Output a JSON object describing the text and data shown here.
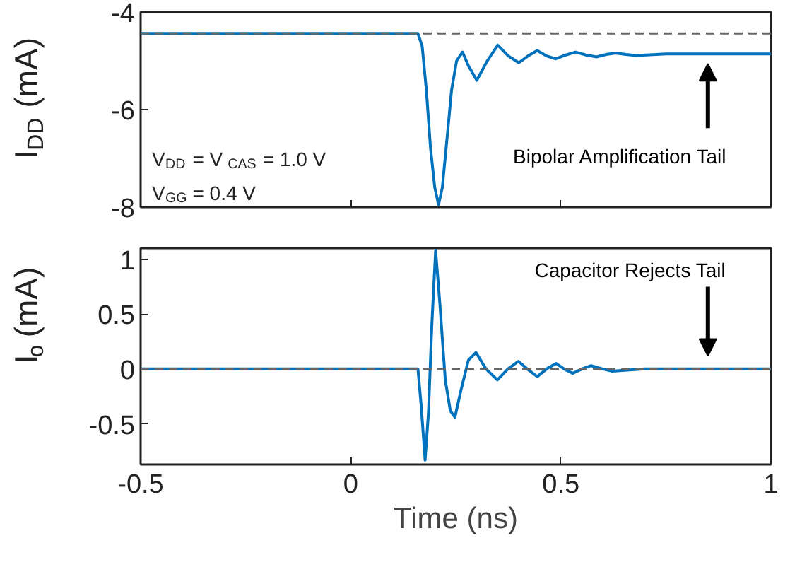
{
  "chart_data": [
    {
      "type": "line",
      "ylabel": "I$_{DD}$ (mA)",
      "xlim": [
        -0.5,
        1
      ],
      "xticks": [
        -0.5,
        0,
        0.5,
        1
      ],
      "ylim": [
        -8,
        -4
      ],
      "yticks": [
        -8,
        -6,
        -4
      ],
      "tick_labels": "y",
      "marker": "none",
      "line_style": "solid",
      "x": [
        -0.5,
        0.16,
        0.17,
        0.18,
        0.19,
        0.2,
        0.209,
        0.218,
        0.228,
        0.24,
        0.252,
        0.266,
        0.28,
        0.3,
        0.325,
        0.35,
        0.375,
        0.4,
        0.422,
        0.444,
        0.466,
        0.488,
        0.512,
        0.535,
        0.56,
        0.585,
        0.608,
        0.63,
        0.655,
        0.68,
        0.75,
        1.0
      ],
      "series": [
        {
          "color": "#0072bd",
          "values": [
            -4.44,
            -4.44,
            -4.7,
            -5.6,
            -6.8,
            -7.6,
            -7.95,
            -7.6,
            -6.7,
            -5.6,
            -5.0,
            -4.82,
            -5.1,
            -5.4,
            -5.0,
            -4.68,
            -4.9,
            -5.04,
            -4.9,
            -4.79,
            -4.9,
            -4.96,
            -4.88,
            -4.82,
            -4.88,
            -4.92,
            -4.87,
            -4.84,
            -4.87,
            -4.89,
            -4.86,
            -4.86
          ]
        }
      ],
      "ref_lines": [
        {
          "axis": "y",
          "value": -4.44,
          "color": "#666666",
          "line_style": "dashed"
        }
      ],
      "annotations": [
        "V$_{DD}$ = V$_{CAS}$ = 1.0 V",
        "V$_{GG}$ = 0.4 V",
        "Bipolar Amplification Tail"
      ]
    },
    {
      "type": "line",
      "xlabel": "Time (ns)",
      "ylabel": "I$_{o}$ (mA)",
      "xlim": [
        -0.5,
        1
      ],
      "xticks": [
        -0.5,
        0,
        0.5,
        1
      ],
      "ylim": [
        -0.87,
        1.1
      ],
      "yticks": [
        -0.5,
        0,
        0.5,
        1
      ],
      "marker": "none",
      "line_style": "solid",
      "x": [
        -0.5,
        0.16,
        0.168,
        0.177,
        0.185,
        0.193,
        0.202,
        0.212,
        0.225,
        0.237,
        0.248,
        0.262,
        0.28,
        0.298,
        0.322,
        0.349,
        0.374,
        0.399,
        0.42,
        0.444,
        0.466,
        0.489,
        0.508,
        0.528,
        0.55,
        0.572,
        0.6,
        0.622,
        0.7,
        1.0
      ],
      "series": [
        {
          "color": "#0072bd",
          "values": [
            0,
            0,
            -0.35,
            -0.83,
            -0.4,
            0.4,
            1.08,
            0.6,
            -0.1,
            -0.38,
            -0.44,
            -0.2,
            0.08,
            0.15,
            0.0,
            -0.1,
            0.0,
            0.07,
            0.0,
            -0.07,
            0.0,
            0.05,
            0.0,
            -0.04,
            0.0,
            0.03,
            0.0,
            -0.02,
            0,
            0
          ]
        }
      ],
      "ref_lines": [
        {
          "axis": "y",
          "value": 0,
          "color": "#666666",
          "line_style": "dashed"
        }
      ],
      "annotations": [
        "Capacitor Rejects Tail"
      ]
    }
  ]
}
